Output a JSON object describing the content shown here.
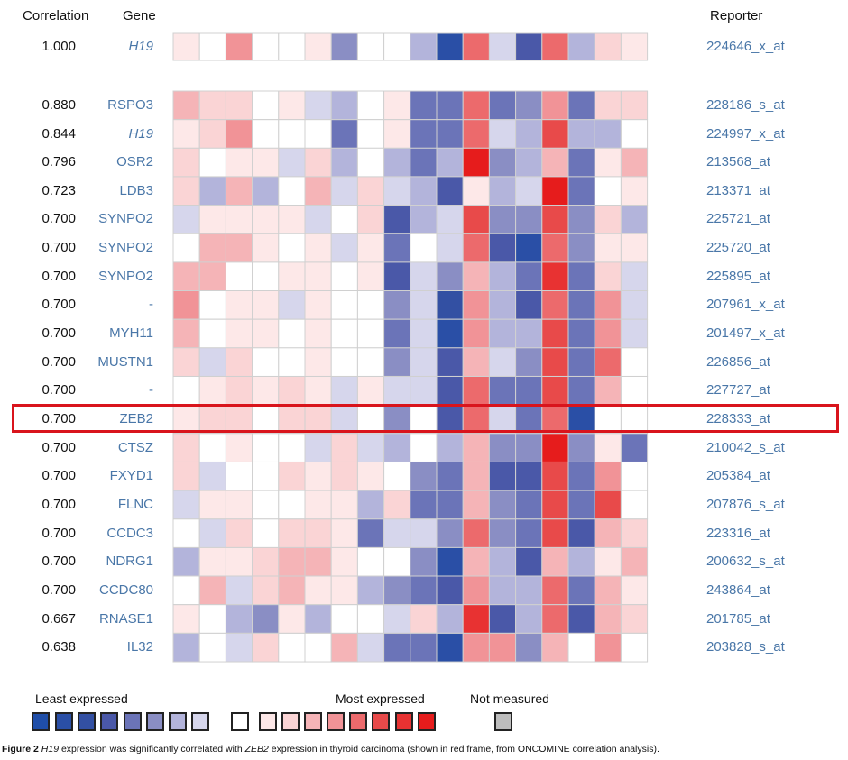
{
  "chart_data": {
    "type": "heatmap",
    "title": "",
    "columns_header": {
      "correlation": "Correlation",
      "gene": "Gene",
      "reporter": "Reporter"
    },
    "n_columns": 18,
    "value_scale": "ordinal expression level from -8 (least expressed, dark blue) to +8 (most expressed, dark red); 0 = white",
    "query_row": {
      "correlation": "1.000",
      "gene": "H19",
      "italic": true,
      "reporter": "224646_x_at",
      "values": [
        1,
        0,
        4,
        0,
        0,
        1,
        -3,
        0,
        0,
        -2,
        -7,
        5,
        -1,
        -5,
        5,
        -2,
        2,
        1
      ]
    },
    "rows": [
      {
        "correlation": "0.880",
        "gene": "RSPO3",
        "italic": false,
        "reporter": "228186_s_at",
        "values": [
          3,
          2,
          2,
          0,
          1,
          -1,
          -2,
          0,
          1,
          -4,
          -4,
          5,
          -4,
          -3,
          4,
          -4,
          2,
          2
        ]
      },
      {
        "correlation": "0.844",
        "gene": "H19",
        "italic": true,
        "reporter": "224997_x_at",
        "values": [
          1,
          2,
          4,
          0,
          0,
          0,
          -4,
          0,
          1,
          -4,
          -4,
          5,
          -1,
          -2,
          6,
          -2,
          -2,
          0
        ]
      },
      {
        "correlation": "0.796",
        "gene": "OSR2",
        "italic": false,
        "reporter": "213568_at",
        "values": [
          2,
          0,
          1,
          1,
          -1,
          2,
          -2,
          0,
          -2,
          -4,
          -2,
          8,
          -3,
          -2,
          3,
          -4,
          1,
          3
        ]
      },
      {
        "correlation": "0.723",
        "gene": "LDB3",
        "italic": false,
        "reporter": "213371_at",
        "values": [
          2,
          -2,
          3,
          -2,
          0,
          3,
          -1,
          2,
          -1,
          -2,
          -5,
          1,
          -2,
          -1,
          8,
          -4,
          0,
          1
        ]
      },
      {
        "correlation": "0.700",
        "gene": "SYNPO2",
        "italic": false,
        "reporter": "225721_at",
        "values": [
          -1,
          1,
          1,
          1,
          1,
          -1,
          0,
          2,
          -5,
          -2,
          -1,
          6,
          -3,
          -3,
          6,
          -3,
          2,
          -2
        ]
      },
      {
        "correlation": "0.700",
        "gene": "SYNPO2",
        "italic": false,
        "reporter": "225720_at",
        "values": [
          0,
          3,
          3,
          1,
          0,
          1,
          -1,
          1,
          -4,
          0,
          -1,
          5,
          -5,
          -7,
          5,
          -3,
          1,
          1
        ]
      },
      {
        "correlation": "0.700",
        "gene": "SYNPO2",
        "italic": false,
        "reporter": "225895_at",
        "values": [
          3,
          3,
          0,
          0,
          1,
          1,
          0,
          1,
          -5,
          -1,
          -3,
          3,
          -2,
          -4,
          7,
          -4,
          2,
          -1
        ]
      },
      {
        "correlation": "0.700",
        "gene": "-",
        "italic": false,
        "reporter": "207961_x_at",
        "values": [
          4,
          0,
          1,
          1,
          -1,
          1,
          0,
          0,
          -3,
          -1,
          -6,
          4,
          -2,
          -5,
          5,
          -4,
          4,
          -1
        ]
      },
      {
        "correlation": "0.700",
        "gene": "MYH11",
        "italic": false,
        "reporter": "201497_x_at",
        "values": [
          3,
          0,
          1,
          1,
          0,
          1,
          0,
          0,
          -4,
          -1,
          -7,
          4,
          -2,
          -2,
          6,
          -4,
          4,
          -1
        ]
      },
      {
        "correlation": "0.700",
        "gene": "MUSTN1",
        "italic": false,
        "reporter": "226856_at",
        "values": [
          2,
          -1,
          2,
          0,
          0,
          1,
          0,
          0,
          -3,
          -1,
          -5,
          3,
          -1,
          -3,
          6,
          -4,
          5,
          0
        ]
      },
      {
        "correlation": "0.700",
        "gene": "-",
        "italic": false,
        "reporter": "227727_at",
        "values": [
          0,
          1,
          2,
          1,
          2,
          1,
          -1,
          1,
          -1,
          -1,
          -5,
          5,
          -4,
          -4,
          6,
          -4,
          3,
          0
        ]
      },
      {
        "correlation": "0.700",
        "gene": "ZEB2",
        "italic": false,
        "reporter": "228333_at",
        "highlighted": true,
        "values": [
          1,
          2,
          2,
          0,
          2,
          2,
          -1,
          0,
          -3,
          0,
          -5,
          5,
          -1,
          -4,
          5,
          -7,
          0,
          0
        ]
      },
      {
        "correlation": "0.700",
        "gene": "CTSZ",
        "italic": false,
        "reporter": "210042_s_at",
        "values": [
          2,
          0,
          1,
          0,
          0,
          -1,
          2,
          -1,
          -2,
          0,
          -2,
          3,
          -3,
          -3,
          8,
          -3,
          1,
          -4
        ]
      },
      {
        "correlation": "0.700",
        "gene": "FXYD1",
        "italic": false,
        "reporter": "205384_at",
        "values": [
          2,
          -1,
          0,
          0,
          2,
          1,
          2,
          1,
          0,
          -3,
          -4,
          3,
          -5,
          -5,
          6,
          -4,
          4,
          0
        ]
      },
      {
        "correlation": "0.700",
        "gene": "FLNC",
        "italic": false,
        "reporter": "207876_s_at",
        "values": [
          -1,
          1,
          1,
          0,
          0,
          1,
          1,
          -2,
          2,
          -4,
          -4,
          3,
          -3,
          -4,
          6,
          -4,
          6,
          0
        ]
      },
      {
        "correlation": "0.700",
        "gene": "CCDC3",
        "italic": false,
        "reporter": "223316_at",
        "values": [
          0,
          -1,
          2,
          0,
          2,
          2,
          1,
          -4,
          -1,
          -1,
          -3,
          5,
          -3,
          -4,
          6,
          -5,
          3,
          2
        ]
      },
      {
        "correlation": "0.700",
        "gene": "NDRG1",
        "italic": false,
        "reporter": "200632_s_at",
        "values": [
          -2,
          1,
          1,
          2,
          3,
          3,
          1,
          0,
          0,
          -3,
          -7,
          3,
          -2,
          -5,
          3,
          -2,
          1,
          3
        ]
      },
      {
        "correlation": "0.700",
        "gene": "CCDC80",
        "italic": false,
        "reporter": "243864_at",
        "values": [
          0,
          3,
          -1,
          2,
          3,
          1,
          1,
          -2,
          -3,
          -4,
          -5,
          4,
          -2,
          -2,
          5,
          -4,
          3,
          1
        ]
      },
      {
        "correlation": "0.667",
        "gene": "RNASE1",
        "italic": false,
        "reporter": "201785_at",
        "values": [
          1,
          0,
          -2,
          -3,
          1,
          -2,
          0,
          0,
          -1,
          2,
          -2,
          7,
          -5,
          -2,
          5,
          -5,
          3,
          2
        ]
      },
      {
        "correlation": "0.638",
        "gene": "IL32",
        "italic": false,
        "reporter": "203828_s_at",
        "values": [
          -2,
          0,
          -1,
          2,
          0,
          0,
          3,
          -1,
          -4,
          -4,
          -7,
          4,
          4,
          -3,
          3,
          0,
          4,
          0
        ]
      }
    ],
    "palette": {
      "-8": "#1f4ea8",
      "-7": "#2a4fa6",
      "-6": "#3350a3",
      "-5": "#4a58a8",
      "-4": "#6b74b8",
      "-3": "#8a8ec4",
      "-2": "#b3b4db",
      "-1": "#d6d6ec",
      "0": "#ffffff",
      "1": "#fde8e8",
      "2": "#fad4d5",
      "3": "#f5b4b7",
      "4": "#f19397",
      "5": "#ec6a6c",
      "6": "#e84a4a",
      "7": "#e83232",
      "8": "#e61c1c"
    },
    "legend": {
      "least_label": "Least expressed",
      "most_label": "Most expressed",
      "not_measured_label": "Not measured",
      "scale_levels": [
        -8,
        -7,
        -6,
        -5,
        -4,
        -3,
        -2,
        -1,
        0,
        1,
        2,
        3,
        4,
        5,
        6,
        7,
        8
      ],
      "not_measured_color": "#bdbdbd"
    },
    "highlight_color": "#d9141c"
  },
  "caption": {
    "figure_label": "Figure 2",
    "gene1": "H19",
    "text1": " expression was significantly correlated with ",
    "gene2": "ZEB2",
    "text2": " expression in thyroid carcinoma (shown in red frame, from ONCOMINE correlation analysis)."
  }
}
